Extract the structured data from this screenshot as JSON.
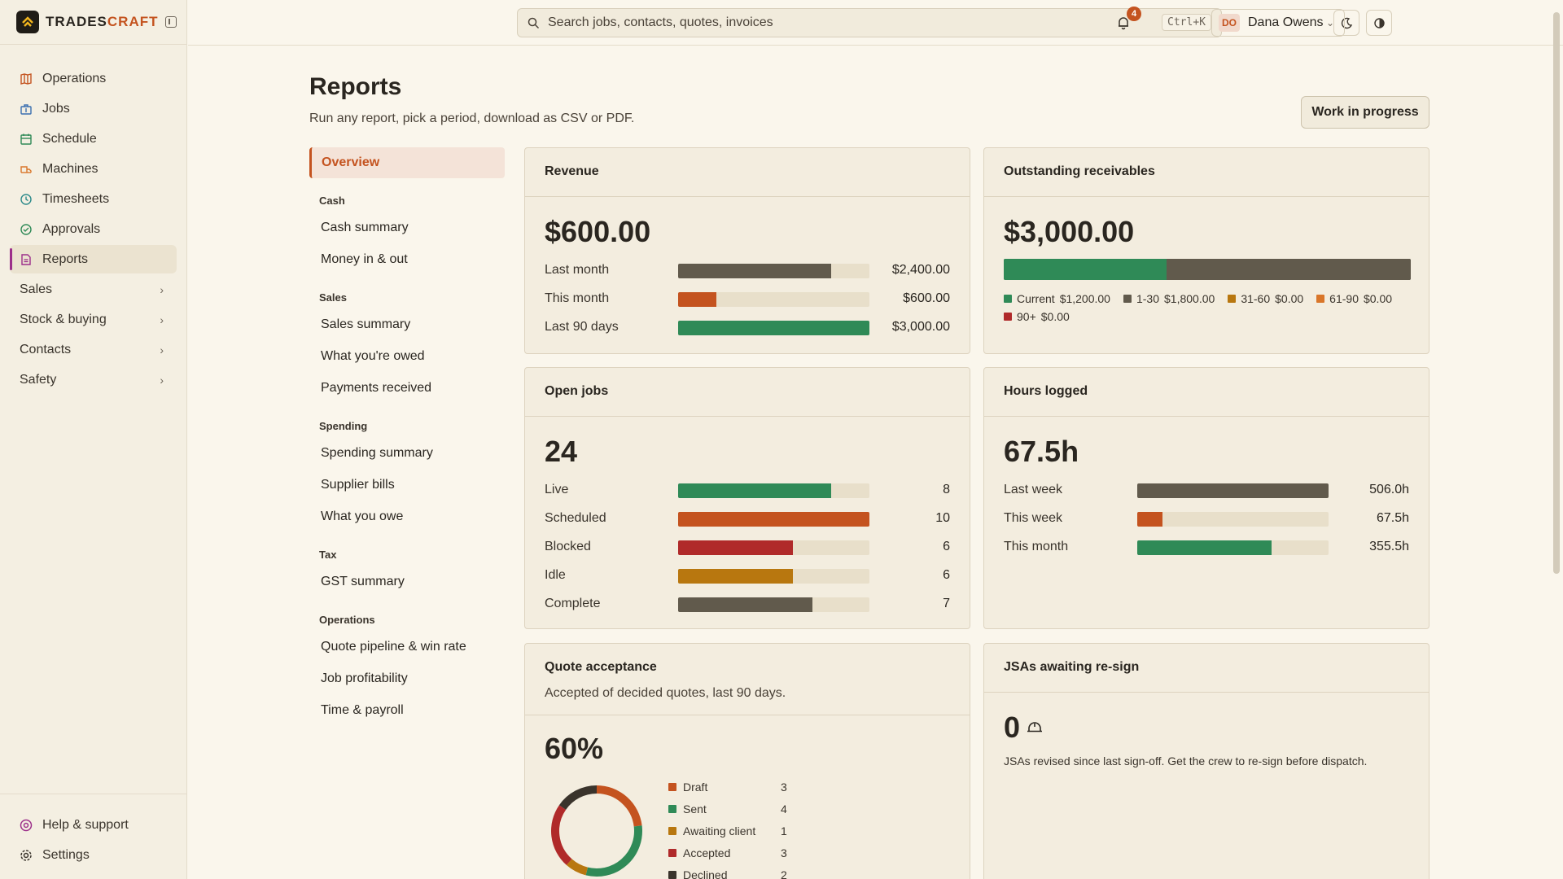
{
  "brand": {
    "name_a": "TRADES",
    "name_b": "CRAFT"
  },
  "sidebar": {
    "items": [
      {
        "key": "operations",
        "label": "Operations",
        "icon": "map-icon",
        "color": "#c4531f"
      },
      {
        "key": "jobs",
        "label": "Jobs",
        "icon": "briefcase-icon",
        "color": "#3a6fb0"
      },
      {
        "key": "schedule",
        "label": "Schedule",
        "icon": "calendar-icon",
        "color": "#2f8a57"
      },
      {
        "key": "machines",
        "label": "Machines",
        "icon": "truck-icon",
        "color": "#d9762a"
      },
      {
        "key": "timesheets",
        "label": "Timesheets",
        "icon": "clock-icon",
        "color": "#2d8a8a"
      },
      {
        "key": "approvals",
        "label": "Approvals",
        "icon": "check-circle-icon",
        "color": "#2f8a57"
      },
      {
        "key": "reports",
        "label": "Reports",
        "icon": "report-icon",
        "color": "#9c2f8a"
      }
    ],
    "groups": [
      "Sales",
      "Stock & buying",
      "Contacts",
      "Safety"
    ],
    "bottom": [
      {
        "label": "Help & support",
        "icon": "help-icon",
        "color": "#9c2f8a"
      },
      {
        "label": "Settings",
        "icon": "gear-icon",
        "color": "#3a342c"
      }
    ]
  },
  "topbar": {
    "search_placeholder": "Search jobs, contacts, quotes, invoices",
    "search_shortcut": "Ctrl+K",
    "notification_count": "4",
    "user_initials": "DO",
    "user_name": "Dana Owens"
  },
  "page": {
    "title": "Reports",
    "subtitle": "Run any report, pick a period, download as CSV or PDF.",
    "wip_button": "Work in progress"
  },
  "report_nav": {
    "overview": "Overview",
    "sections": [
      {
        "heading": "Cash",
        "items": [
          "Cash summary",
          "Money in & out"
        ]
      },
      {
        "heading": "Sales",
        "items": [
          "Sales summary",
          "What you're owed",
          "Payments received"
        ]
      },
      {
        "heading": "Spending",
        "items": [
          "Spending summary",
          "Supplier bills",
          "What you owe"
        ]
      },
      {
        "heading": "Tax",
        "items": [
          "GST summary"
        ]
      },
      {
        "heading": "Operations",
        "items": [
          "Quote pipeline & win rate",
          "Job profitability",
          "Time & payroll"
        ]
      }
    ]
  },
  "colors": {
    "dark": "#615a4c",
    "orange": "#c4531f",
    "green": "#2f8a57",
    "red": "#b02a2a",
    "amber": "#b8770f"
  },
  "cards": {
    "revenue": {
      "title": "Revenue",
      "total": "$600.00",
      "rows": [
        {
          "label": "Last month",
          "value": "$2,400.00",
          "fraction": 0.8,
          "color": "#615a4c"
        },
        {
          "label": "This month",
          "value": "$600.00",
          "fraction": 0.2,
          "color": "#c4531f"
        },
        {
          "label": "Last 90 days",
          "value": "$3,000.00",
          "fraction": 1.0,
          "color": "#2f8a57"
        }
      ]
    },
    "receivables": {
      "title": "Outstanding receivables",
      "total": "$3,000.00",
      "segments": [
        {
          "label": "Current",
          "value": "$1,200.00",
          "fraction": 0.4,
          "color": "#2f8a57"
        },
        {
          "label": "1-30",
          "value": "$1,800.00",
          "fraction": 0.6,
          "color": "#615a4c"
        },
        {
          "label": "31-60",
          "value": "$0.00",
          "fraction": 0,
          "color": "#b8770f"
        },
        {
          "label": "61-90",
          "value": "$0.00",
          "fraction": 0,
          "color": "#d9762a"
        },
        {
          "label": "90+",
          "value": "$0.00",
          "fraction": 0,
          "color": "#b02a2a"
        }
      ]
    },
    "open_jobs": {
      "title": "Open jobs",
      "total": "24",
      "rows": [
        {
          "label": "Live",
          "value": "8",
          "fraction": 0.8,
          "color": "#2f8a57"
        },
        {
          "label": "Scheduled",
          "value": "10",
          "fraction": 1.0,
          "color": "#c4531f"
        },
        {
          "label": "Blocked",
          "value": "6",
          "fraction": 0.6,
          "color": "#b02a2a"
        },
        {
          "label": "Idle",
          "value": "6",
          "fraction": 0.6,
          "color": "#b8770f"
        },
        {
          "label": "Complete",
          "value": "7",
          "fraction": 0.7,
          "color": "#615a4c"
        }
      ]
    },
    "hours": {
      "title": "Hours logged",
      "total": "67.5h",
      "rows": [
        {
          "label": "Last week",
          "value": "506.0h",
          "fraction": 1.0,
          "color": "#615a4c"
        },
        {
          "label": "This week",
          "value": "67.5h",
          "fraction": 0.133,
          "color": "#c4531f"
        },
        {
          "label": "This month",
          "value": "355.5h",
          "fraction": 0.703,
          "color": "#2f8a57"
        }
      ]
    },
    "quotes": {
      "title": "Quote acceptance",
      "subtitle": "Accepted of decided quotes, last 90 days.",
      "total": "60%",
      "legend": [
        {
          "label": "Draft",
          "value": "3",
          "count": 3,
          "color": "#c4531f"
        },
        {
          "label": "Sent",
          "value": "4",
          "count": 4,
          "color": "#2f8a57"
        },
        {
          "label": "Awaiting client",
          "value": "1",
          "count": 1,
          "color": "#b8770f"
        },
        {
          "label": "Accepted",
          "value": "3",
          "count": 3,
          "color": "#b02a2a"
        },
        {
          "label": "Declined",
          "value": "2",
          "count": 2,
          "color": "#3a342c"
        }
      ]
    },
    "jsas": {
      "title": "JSAs awaiting re-sign",
      "total": "0",
      "icon": "hard-hat-icon",
      "note": "JSAs revised since last sign-off. Get the crew to re-sign before dispatch."
    }
  }
}
